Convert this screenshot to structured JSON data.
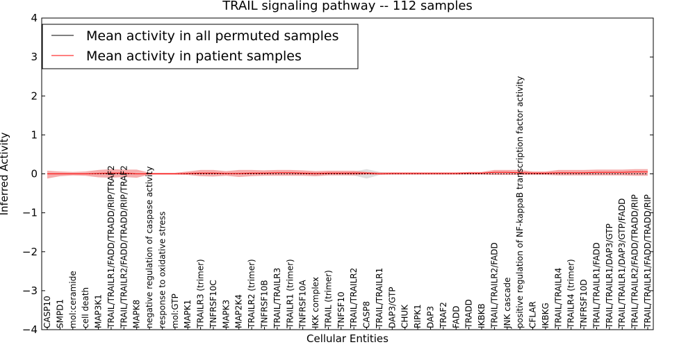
{
  "chart_data": {
    "type": "line",
    "title": "TRAIL signaling pathway -- 112 samples",
    "xlabel": "Cellular Entities",
    "ylabel": "Inferred Activity",
    "ylim": [
      -4,
      4
    ],
    "yticks": [
      -4,
      -3,
      -2,
      -1,
      0,
      1,
      2,
      3,
      4
    ],
    "ytick_labels": [
      "−4",
      "−3",
      "−2",
      "−1",
      "0",
      "1",
      "2",
      "3",
      "4"
    ],
    "legend_position": "upper-left",
    "categories": [
      "CASP10",
      "SMPD1",
      "mol:ceramide",
      "cell death",
      "MAP3K1",
      "TRAIL/TRAILR1/FADD/TRADD/RIP/TRAF2",
      "TRAIL/TRAILR2/FADD/TRADD/RIP/TRAF2",
      "MAPK8",
      "negative regulation of caspase activity",
      "response to oxidative stress",
      "mol:GTP",
      "MAPK1",
      "TRAILR3 (trimer)",
      "TNFRSF10C",
      "MAPK3",
      "MAP2K4",
      "TRAILR2 (trimer)",
      "TNFRSF10B",
      "TRAIL/TRAILR3",
      "TRAILR1 (trimer)",
      "TNFRSF10A",
      "IKK complex",
      "TRAIL (trimer)",
      "TNFSF10",
      "TRAIL/TRAILR2",
      "CASP8",
      "TRAIL/TRAILR1",
      "DAP3/GTP",
      "CHUK",
      "RIPK1",
      "DAP3",
      "TRAF2",
      "FADD",
      "TRADD",
      "IKBKB",
      "TRAIL/TRAILR2/FADD",
      "JNK cascade",
      "positive regulation of NF-kappaB transcription factor activity",
      "CFLAR",
      "IKBKG",
      "TRAIL/TRAILR4",
      "TRAILR4 (trimer)",
      "TNFRSF10D",
      "TRAIL/TRAILR1/FADD",
      "TRAIL/TRAILR1/DAP3/GTP",
      "TRAIL/TRAILR1/DAP3/GTP/FADD",
      "TRAIL/TRAILR2/FADD/TRADD/RIP",
      "TRAIL/TRAILR1/FADD/TRADD/RIP"
    ],
    "series": [
      {
        "name": "Mean activity in all permuted samples",
        "color": "#000000",
        "values": [
          0,
          0,
          0,
          0,
          0,
          0,
          0,
          0,
          0,
          0,
          0,
          0,
          0,
          0,
          0,
          0,
          0,
          0,
          0,
          0,
          0,
          0,
          0,
          0,
          0,
          0,
          0,
          0,
          0,
          0,
          0,
          0,
          0,
          0,
          0,
          0,
          0,
          0,
          0,
          0,
          0,
          0,
          0,
          0,
          0,
          0,
          0,
          0
        ],
        "band_lower": [
          -0.01,
          -0.01,
          -0.01,
          -0.01,
          -0.01,
          -0.02,
          -0.02,
          -0.01,
          -0.01,
          -0.01,
          -0.01,
          -0.01,
          -0.01,
          -0.01,
          -0.01,
          -0.01,
          -0.01,
          -0.01,
          -0.01,
          -0.01,
          -0.02,
          -0.04,
          -0.02,
          -0.02,
          -0.04,
          -0.12,
          -0.03,
          -0.01,
          -0.01,
          -0.01,
          -0.01,
          -0.01,
          -0.01,
          -0.01,
          -0.01,
          -0.01,
          -0.01,
          -0.01,
          -0.01,
          -0.01,
          -0.01,
          -0.01,
          -0.01,
          -0.01,
          -0.01,
          -0.01,
          -0.01,
          -0.01
        ],
        "band_upper": [
          0.01,
          0.01,
          0.01,
          0.01,
          0.01,
          0.02,
          0.02,
          0.01,
          0.01,
          0.01,
          0.01,
          0.01,
          0.01,
          0.01,
          0.01,
          0.01,
          0.01,
          0.01,
          0.01,
          0.01,
          0.02,
          0.04,
          0.02,
          0.02,
          0.06,
          0.12,
          0.05,
          0.01,
          0.01,
          0.01,
          0.01,
          0.01,
          0.01,
          0.01,
          0.01,
          0.01,
          0.01,
          0.01,
          0.01,
          0.01,
          0.01,
          0.01,
          0.01,
          0.01,
          0.01,
          0.01,
          0.01,
          0.01
        ]
      },
      {
        "name": "Mean activity in patient samples",
        "color": "#ff0000",
        "band_color": "#f08080",
        "values": [
          0,
          0,
          0,
          0,
          0.01,
          0.02,
          0.02,
          0,
          0,
          0,
          0,
          0.01,
          0.02,
          0.02,
          0.01,
          0.01,
          0.02,
          0.02,
          0.03,
          0.03,
          0.02,
          0.01,
          0.02,
          0.02,
          0.02,
          0.02,
          0,
          0.01,
          0.01,
          0.01,
          0.01,
          0.01,
          0.01,
          0.02,
          0.02,
          0.04,
          0.04,
          0.03,
          0.02,
          0.02,
          0.03,
          0.03,
          0.03,
          0.04,
          0.04,
          0.04,
          0.05,
          0.05
        ],
        "band_lower": [
          -0.12,
          -0.06,
          -0.04,
          -0.05,
          -0.09,
          -0.1,
          -0.08,
          -0.1,
          -0.02,
          -0.02,
          -0.02,
          -0.03,
          -0.06,
          -0.07,
          -0.05,
          -0.08,
          -0.06,
          -0.05,
          -0.05,
          -0.05,
          -0.05,
          -0.06,
          -0.04,
          -0.04,
          -0.04,
          -0.02,
          -0.02,
          -0.02,
          -0.02,
          -0.02,
          -0.02,
          -0.02,
          -0.02,
          -0.02,
          -0.02,
          -0.03,
          -0.03,
          -0.03,
          -0.03,
          -0.03,
          -0.04,
          -0.04,
          -0.04,
          -0.04,
          -0.04,
          -0.04,
          -0.05,
          -0.05
        ],
        "band_upper": [
          0.08,
          0.06,
          0.05,
          0.06,
          0.1,
          0.12,
          0.11,
          0.11,
          0.03,
          0.03,
          0.03,
          0.06,
          0.1,
          0.1,
          0.07,
          0.1,
          0.1,
          0.09,
          0.1,
          0.1,
          0.09,
          0.07,
          0.08,
          0.08,
          0.08,
          0.05,
          0.04,
          0.04,
          0.04,
          0.04,
          0.04,
          0.04,
          0.04,
          0.05,
          0.05,
          0.1,
          0.1,
          0.1,
          0.06,
          0.06,
          0.1,
          0.1,
          0.1,
          0.11,
          0.11,
          0.11,
          0.12,
          0.12
        ]
      }
    ]
  }
}
